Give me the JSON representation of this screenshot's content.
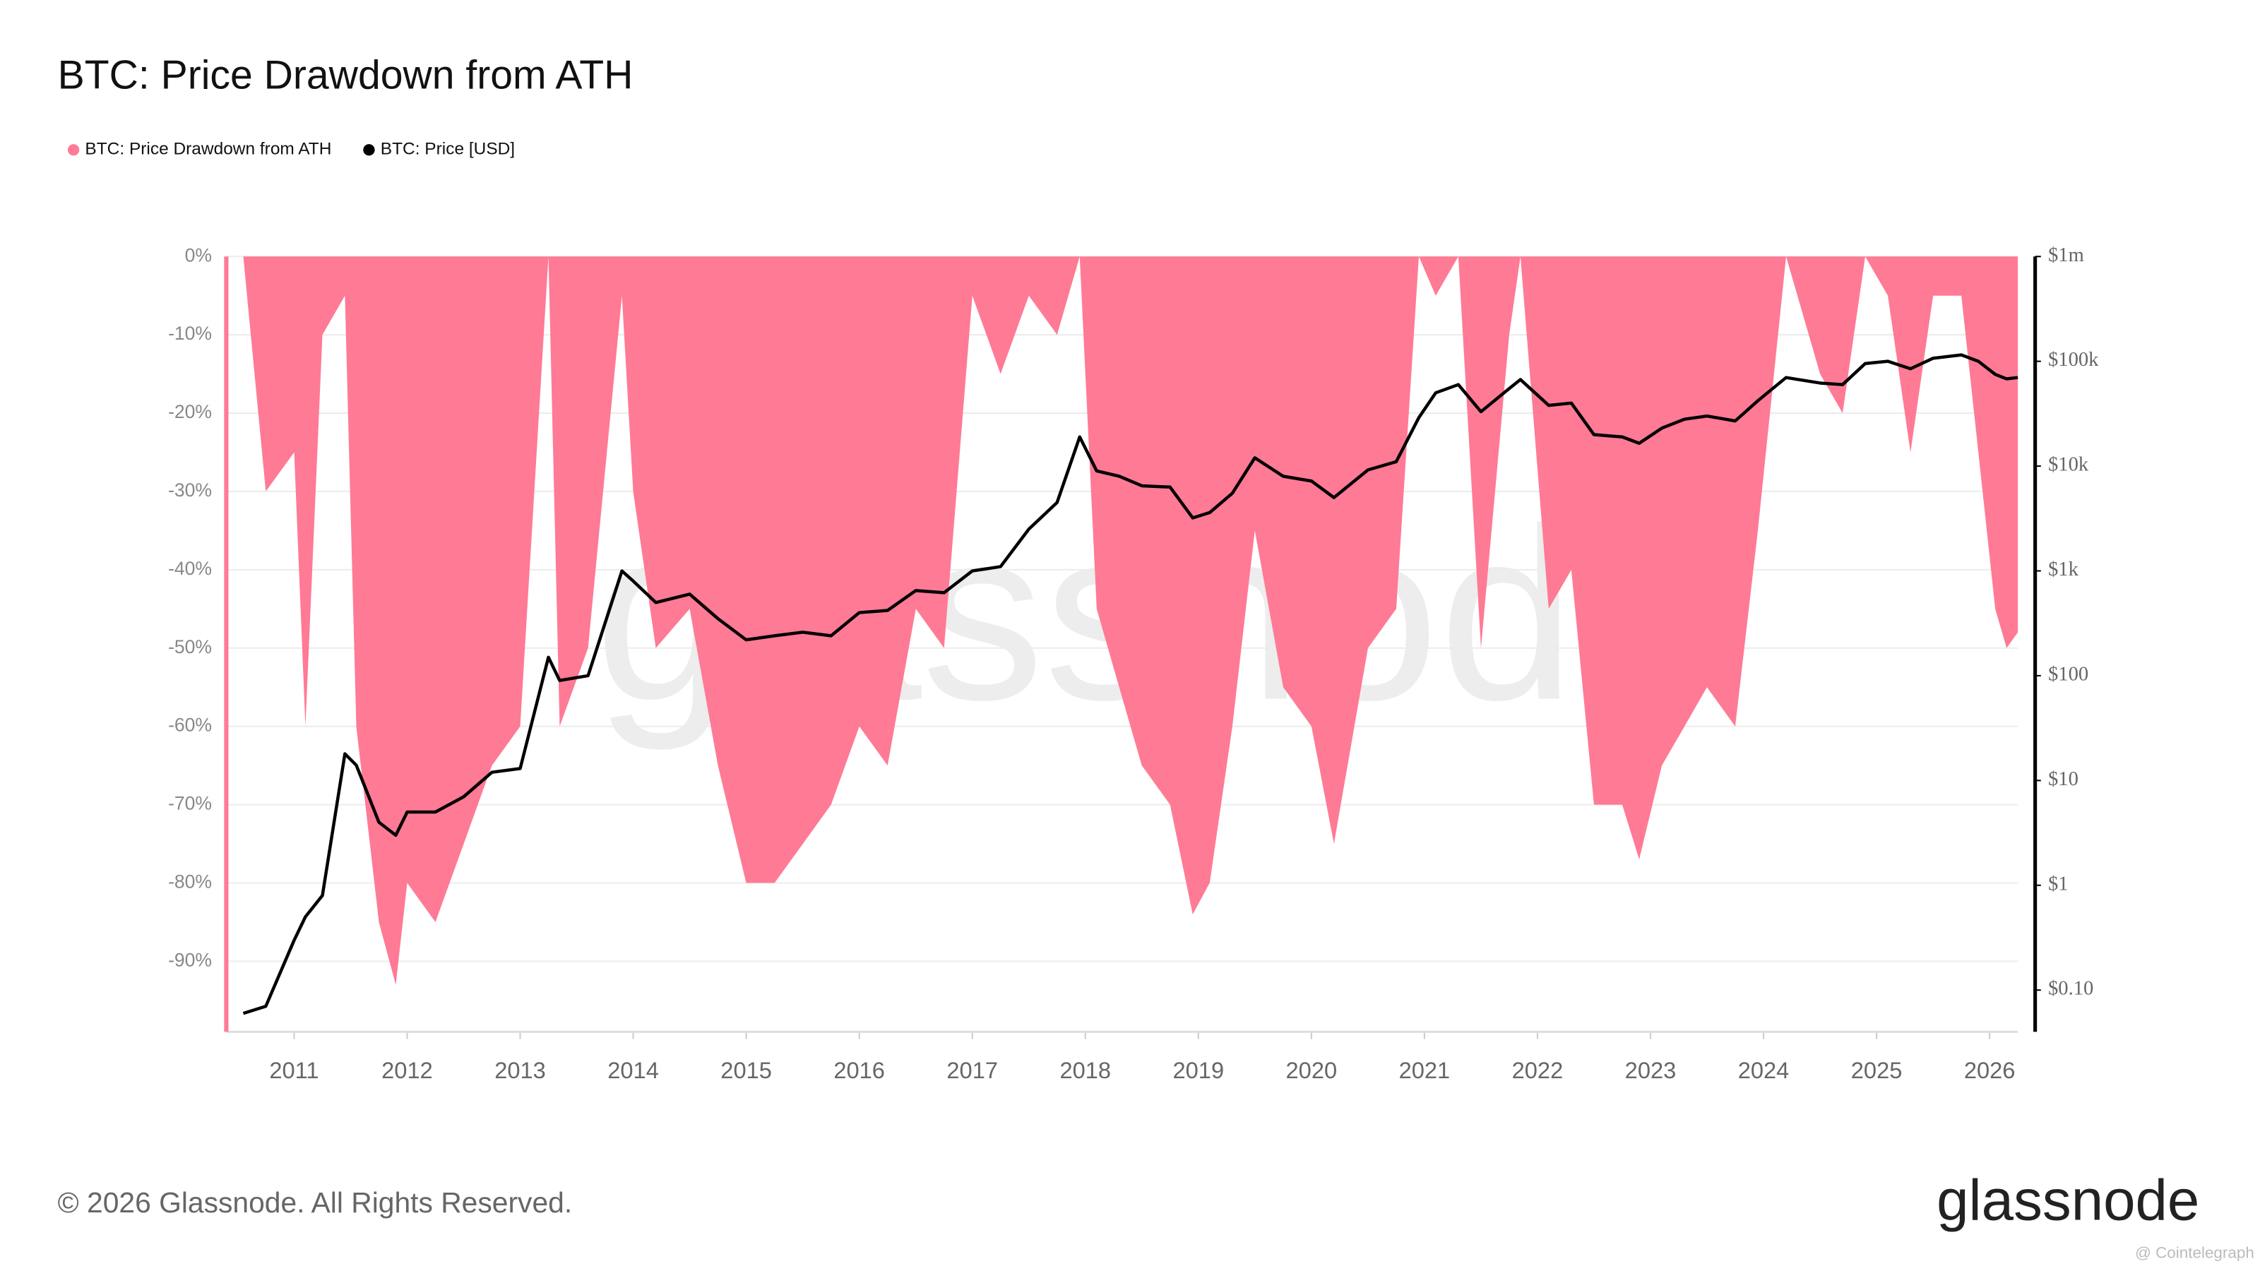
{
  "chart_data": {
    "type": "line",
    "title": "BTC: Price Drawdown from ATH",
    "watermark": "glassnode",
    "footer": "© 2026 Glassnode. All Rights Reserved.",
    "logo": "glassnode",
    "credit": "@ Cointelegraph",
    "x": [
      2010.55,
      2010.75,
      2011.0,
      2011.1,
      2011.25,
      2011.45,
      2011.55,
      2011.75,
      2011.9,
      2012.0,
      2012.25,
      2012.5,
      2012.75,
      2013.0,
      2013.25,
      2013.35,
      2013.6,
      2013.9,
      2014.0,
      2014.2,
      2014.5,
      2014.75,
      2015.0,
      2015.25,
      2015.5,
      2015.75,
      2016.0,
      2016.25,
      2016.5,
      2016.75,
      2017.0,
      2017.25,
      2017.5,
      2017.75,
      2017.95,
      2018.1,
      2018.3,
      2018.5,
      2018.75,
      2018.95,
      2019.1,
      2019.3,
      2019.5,
      2019.75,
      2020.0,
      2020.2,
      2020.5,
      2020.75,
      2020.95,
      2021.1,
      2021.3,
      2021.5,
      2021.75,
      2021.85,
      2022.1,
      2022.3,
      2022.5,
      2022.75,
      2022.9,
      2023.1,
      2023.3,
      2023.5,
      2023.75,
      2023.95,
      2024.2,
      2024.5,
      2024.7,
      2024.9,
      2025.1,
      2025.3,
      2025.5,
      2025.75,
      2025.9,
      2026.05,
      2026.15,
      2026.25
    ],
    "series": [
      {
        "name": "BTC: Price Drawdown from ATH",
        "color": "#ff7a95",
        "type": "area",
        "values": [
          0,
          -30,
          -25,
          -60,
          -10,
          -5,
          -60,
          -85,
          -93,
          -80,
          -85,
          -75,
          -65,
          -60,
          0,
          -60,
          -50,
          -5,
          -30,
          -50,
          -45,
          -65,
          -80,
          -80,
          -75,
          -70,
          -60,
          -65,
          -45,
          -50,
          -5,
          -15,
          -5,
          -10,
          0,
          -45,
          -55,
          -65,
          -70,
          -84,
          -80,
          -60,
          -35,
          -55,
          -60,
          -75,
          -50,
          -45,
          0,
          -5,
          0,
          -50,
          -10,
          0,
          -45,
          -40,
          -70,
          -70,
          -77,
          -65,
          -60,
          -55,
          -60,
          -35,
          0,
          -15,
          -20,
          0,
          -5,
          -25,
          -5,
          -5,
          -25,
          -45,
          -50,
          -48
        ]
      },
      {
        "name": "BTC: Price [USD]",
        "color": "#000000",
        "type": "line",
        "axis": "y2",
        "values": [
          0.06,
          0.07,
          0.3,
          0.5,
          0.8,
          18,
          14,
          4,
          3,
          5,
          5,
          7,
          12,
          13,
          150,
          90,
          100,
          1000,
          800,
          500,
          600,
          350,
          220,
          240,
          260,
          240,
          400,
          420,
          650,
          620,
          1000,
          1100,
          2500,
          4500,
          19000,
          9000,
          8000,
          6500,
          6300,
          3200,
          3600,
          5500,
          12000,
          8000,
          7200,
          5000,
          9200,
          11000,
          29000,
          50000,
          60000,
          33000,
          55000,
          67000,
          38000,
          40000,
          20000,
          19000,
          16500,
          23000,
          28000,
          30000,
          27000,
          42000,
          70000,
          62000,
          60000,
          95000,
          100000,
          85000,
          107000,
          115000,
          100000,
          75000,
          68000,
          70000
        ]
      }
    ],
    "xlim": [
      2010.4,
      2026.25
    ],
    "xticks": [
      2011,
      2012,
      2013,
      2014,
      2015,
      2016,
      2017,
      2018,
      2019,
      2020,
      2021,
      2022,
      2023,
      2024,
      2025,
      2026
    ],
    "ylim": [
      -99,
      0
    ],
    "yticks": [
      {
        "value": 0,
        "label": "0%"
      },
      {
        "value": -10,
        "label": "-10%"
      },
      {
        "value": -20,
        "label": "-20%"
      },
      {
        "value": -30,
        "label": "-30%"
      },
      {
        "value": -40,
        "label": "-40%"
      },
      {
        "value": -50,
        "label": "-50%"
      },
      {
        "value": -60,
        "label": "-60%"
      },
      {
        "value": -70,
        "label": "-70%"
      },
      {
        "value": -80,
        "label": "-80%"
      },
      {
        "value": -90,
        "label": "-90%"
      }
    ],
    "y2lim": [
      0.04,
      1000000
    ],
    "y2log": true,
    "y2ticks": [
      {
        "value": 0.1,
        "label": "$0.10"
      },
      {
        "value": 1,
        "label": "$1"
      },
      {
        "value": 10,
        "label": "$10"
      },
      {
        "value": 100,
        "label": "$100"
      },
      {
        "value": 1000,
        "label": "$1k"
      },
      {
        "value": 10000,
        "label": "$10k"
      },
      {
        "value": 100000,
        "label": "$100k"
      },
      {
        "value": 1000000,
        "label": "$1m"
      }
    ],
    "grid": true,
    "legend": "top-left"
  }
}
